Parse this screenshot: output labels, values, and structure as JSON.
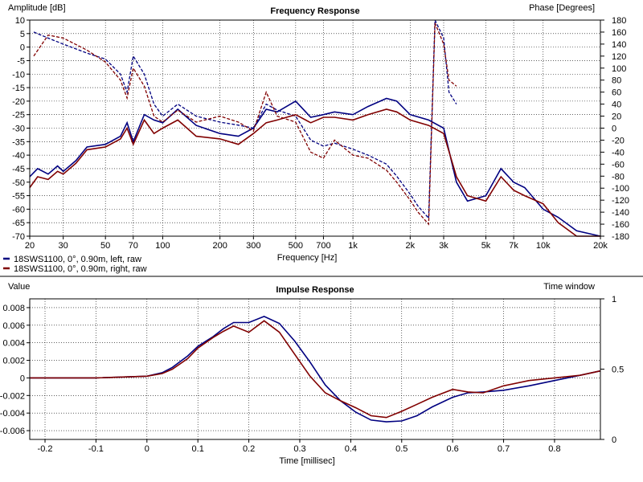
{
  "chart_data": [
    {
      "type": "line",
      "title": "Frequency Response",
      "xlabel": "Frequency [Hz]",
      "ylabel": "Amplitude [dB]",
      "y2label": "Phase [Degrees]",
      "x_scale": "log",
      "xlim": [
        20,
        20000
      ],
      "ylim": [
        -70,
        10
      ],
      "y2lim": [
        -180,
        180
      ],
      "x_ticks": [
        20,
        30,
        50,
        70,
        100,
        200,
        300,
        500,
        700,
        1000,
        2000,
        3000,
        5000,
        7000,
        10000,
        20000
      ],
      "x_tick_labels": [
        "20",
        "30",
        "50",
        "70",
        "100",
        "200",
        "300",
        "500",
        "700",
        "1k",
        "2k",
        "3k",
        "5k",
        "7k",
        "10k",
        "20k"
      ],
      "y_ticks": [
        10,
        5,
        0,
        -5,
        -10,
        -15,
        -20,
        -25,
        -30,
        -35,
        -40,
        -45,
        -50,
        -55,
        -60,
        -65,
        -70
      ],
      "y_tick_labels": [
        "10",
        "5",
        "0",
        "-5",
        "-10",
        "-15",
        "-20",
        "-25",
        "-30",
        "-35",
        "-40",
        "-45",
        "-50",
        "-55",
        "-60",
        "-65",
        "-70"
      ],
      "y2_ticks": [
        180,
        160,
        140,
        120,
        100,
        80,
        60,
        40,
        20,
        0,
        -20,
        -40,
        -60,
        -80,
        -100,
        -120,
        -140,
        -160,
        -180
      ],
      "y2_tick_labels": [
        "180",
        "160",
        "140",
        "120",
        "100",
        "80",
        "60",
        "40",
        "20",
        "0",
        "-20",
        "-40",
        "-60",
        "-80",
        "-100",
        "-120",
        "-140",
        "-160",
        "-180"
      ],
      "grid": true,
      "legend": "bottom-left",
      "series": [
        {
          "name": "18SWS1100, 0°, 0.90m, left, raw",
          "color": "#000080",
          "magnitude": {
            "x": [
              20,
              22,
              25,
              28,
              30,
              35,
              40,
              50,
              60,
              65,
              70,
              80,
              90,
              100,
              120,
              150,
              200,
              250,
              300,
              350,
              400,
              500,
              600,
              700,
              800,
              1000,
              1200,
              1500,
              1700,
              2000,
              2500,
              3000,
              3500,
              4000,
              5000,
              6000,
              7000,
              8000,
              10000,
              12000,
              15000,
              20000
            ],
            "y": [
              -48,
              -45,
              -47,
              -44,
              -46,
              -42,
              -37,
              -36,
              -33,
              -28,
              -35,
              -25,
              -27,
              -28,
              -23,
              -29,
              -32,
              -33,
              -30,
              -23,
              -24,
              -20,
              -26,
              -25,
              -24,
              -25,
              -22,
              -19,
              -20,
              -25,
              -27,
              -30,
              -50,
              -57,
              -55,
              -45,
              -50,
              -52,
              -60,
              -63,
              -68,
              -70
            ]
          },
          "phase": {
            "x": [
              21,
              25,
              30,
              40,
              50,
              60,
              65,
              70,
              80,
              90,
              100,
              120,
              150,
              200,
              250,
              300,
              350,
              400,
              500,
              600,
              700,
              800,
              1000,
              1200,
              1500,
              1700,
              2000,
              2200,
              2500,
              2700,
              3000,
              3200,
              3500
            ],
            "y": [
              160,
              150,
              140,
              125,
              115,
              90,
              60,
              120,
              90,
              40,
              20,
              40,
              20,
              10,
              5,
              0,
              40,
              30,
              20,
              -20,
              -30,
              -25,
              -35,
              -45,
              -60,
              -80,
              -110,
              -130,
              -150,
              180,
              150,
              60,
              40
            ]
          }
        },
        {
          "name": "18SWS1100, 0°, 0.90m, right, raw",
          "color": "#800000",
          "magnitude": {
            "x": [
              20,
              22,
              25,
              28,
              30,
              35,
              40,
              50,
              60,
              65,
              70,
              80,
              90,
              100,
              120,
              150,
              200,
              250,
              300,
              350,
              400,
              500,
              600,
              700,
              800,
              1000,
              1200,
              1500,
              1700,
              2000,
              2500,
              3000,
              3500,
              4000,
              5000,
              6000,
              7000,
              8000,
              10000,
              12000,
              15000,
              20000
            ],
            "y": [
              -52,
              -48,
              -49,
              -46,
              -47,
              -43,
              -38,
              -37,
              -34,
              -30,
              -36,
              -27,
              -32,
              -30,
              -27,
              -33,
              -34,
              -36,
              -32,
              -28,
              -27,
              -25,
              -28,
              -26,
              -26,
              -27,
              -25,
              -23,
              -24,
              -27,
              -29,
              -32,
              -48,
              -55,
              -57,
              -48,
              -53,
              -55,
              -58,
              -65,
              -70,
              -70
            ]
          },
          "phase": {
            "x": [
              21,
              25,
              30,
              40,
              50,
              60,
              65,
              70,
              80,
              90,
              100,
              120,
              150,
              200,
              250,
              300,
              350,
              400,
              500,
              600,
              700,
              800,
              1000,
              1200,
              1500,
              1700,
              2000,
              2200,
              2500,
              2700,
              3000,
              3200,
              3500
            ],
            "y": [
              120,
              155,
              150,
              130,
              110,
              80,
              50,
              100,
              70,
              20,
              10,
              30,
              10,
              20,
              10,
              -5,
              60,
              20,
              10,
              -40,
              -50,
              -20,
              -45,
              -50,
              -70,
              -90,
              -120,
              -140,
              -160,
              175,
              140,
              80,
              70
            ]
          }
        }
      ]
    },
    {
      "type": "line",
      "title": "Impulse Response",
      "xlabel": "Time [millisec]",
      "ylabel": "Value",
      "y2label": "Time window",
      "xlim": [
        -0.23,
        0.89
      ],
      "ylim": [
        -0.007,
        0.009
      ],
      "y2lim": [
        0,
        1
      ],
      "x_ticks": [
        -0.2,
        -0.1,
        0,
        0.1,
        0.2,
        0.3,
        0.4,
        0.5,
        0.6,
        0.7,
        0.8
      ],
      "x_tick_labels": [
        "-0.2",
        "-0.1",
        "0",
        "0.1",
        "0.2",
        "0.3",
        "0.4",
        "0.5",
        "0.6",
        "0.7",
        "0.8"
      ],
      "y_ticks": [
        0.008,
        0.006,
        0.004,
        0.002,
        0,
        -0.002,
        -0.004,
        -0.006
      ],
      "y_tick_labels": [
        "0.008",
        "0.006",
        "0.004",
        "0.002",
        "0",
        "-0.002",
        "-0.004",
        "-0.006"
      ],
      "y2_ticks": [
        1,
        0.5,
        0
      ],
      "y2_tick_labels": [
        "1",
        "0.5",
        "0"
      ],
      "grid": true,
      "series": [
        {
          "name": "18SWS1100, 0°, 0.90m, left, raw",
          "color": "#000080",
          "x": [
            -0.23,
            -0.1,
            0,
            0.03,
            0.05,
            0.08,
            0.1,
            0.13,
            0.15,
            0.17,
            0.2,
            0.23,
            0.26,
            0.29,
            0.32,
            0.35,
            0.38,
            0.41,
            0.44,
            0.47,
            0.5,
            0.53,
            0.56,
            0.6,
            0.63,
            0.66,
            0.7,
            0.75,
            0.8,
            0.85,
            0.89
          ],
          "y": [
            0,
            0,
            0.0002,
            0.0006,
            0.0012,
            0.0025,
            0.0036,
            0.0047,
            0.0056,
            0.0063,
            0.0063,
            0.007,
            0.0062,
            0.0042,
            0.0018,
            -0.0008,
            -0.0026,
            -0.0039,
            -0.0048,
            -0.005,
            -0.0049,
            -0.0043,
            -0.0033,
            -0.0022,
            -0.0017,
            -0.0016,
            -0.0014,
            -0.0009,
            -0.0003,
            0.0003,
            0.0008
          ]
        },
        {
          "name": "18SWS1100, 0°, 0.90m, right, raw",
          "color": "#800000",
          "x": [
            -0.23,
            -0.1,
            0,
            0.03,
            0.05,
            0.08,
            0.1,
            0.13,
            0.15,
            0.17,
            0.2,
            0.23,
            0.26,
            0.29,
            0.32,
            0.35,
            0.38,
            0.41,
            0.44,
            0.47,
            0.5,
            0.53,
            0.56,
            0.6,
            0.63,
            0.66,
            0.7,
            0.75,
            0.8,
            0.85,
            0.89
          ],
          "y": [
            0,
            0,
            0.0002,
            0.0005,
            0.001,
            0.0022,
            0.0034,
            0.0046,
            0.0053,
            0.0059,
            0.0052,
            0.0065,
            0.0052,
            0.0027,
            0.0002,
            -0.0017,
            -0.0026,
            -0.0034,
            -0.0043,
            -0.0045,
            -0.0038,
            -0.003,
            -0.0022,
            -0.0013,
            -0.0016,
            -0.0017,
            -0.0009,
            -0.0003,
            0,
            0.0003,
            0.0008
          ]
        }
      ]
    }
  ]
}
